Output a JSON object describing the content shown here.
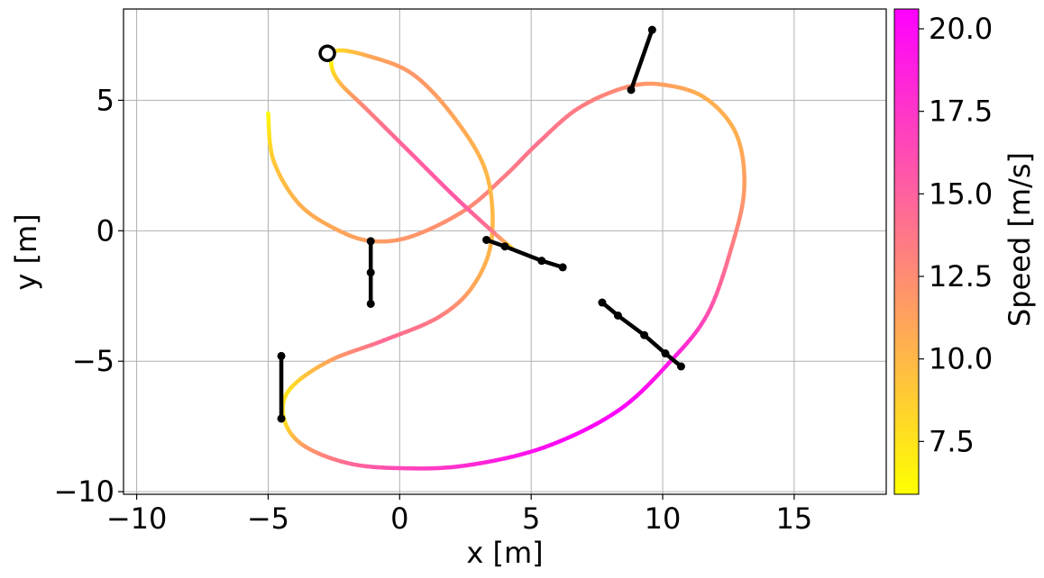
{
  "chart_data": {
    "type": "scatter",
    "xlabel": "x [m]",
    "ylabel": "y [m]",
    "xlim": [
      -10.5,
      18.5
    ],
    "ylim": [
      -10.1,
      8.5
    ],
    "grid": true,
    "xticks": [
      {
        "v": -10,
        "label": "−10"
      },
      {
        "v": -5,
        "label": "−5"
      },
      {
        "v": 0,
        "label": "0"
      },
      {
        "v": 5,
        "label": "5"
      },
      {
        "v": 10,
        "label": "10"
      },
      {
        "v": 15,
        "label": "15"
      }
    ],
    "yticks": [
      {
        "v": -10,
        "label": "−10"
      },
      {
        "v": -5,
        "label": "−5"
      },
      {
        "v": 0,
        "label": "0"
      },
      {
        "v": 5,
        "label": "5"
      }
    ],
    "colorbar": {
      "label": "Speed [m/s]",
      "colormap": "spring_r",
      "range": [
        5.9,
        20.6
      ],
      "ticks": [
        {
          "v": 7.5,
          "label": "7.5"
        },
        {
          "v": 10.0,
          "label": "10.0"
        },
        {
          "v": 12.5,
          "label": "12.5"
        },
        {
          "v": 15.0,
          "label": "15.0"
        },
        {
          "v": 17.5,
          "label": "17.5"
        },
        {
          "v": 20.0,
          "label": "20.0"
        }
      ],
      "colors": {
        "low": "#ffff00",
        "high": "#ff00ff"
      }
    },
    "trajectory": [
      {
        "x": -5.0,
        "y": 4.5,
        "speed": 6.0
      },
      {
        "x": -4.8,
        "y": 2.7,
        "speed": 9.0
      },
      {
        "x": -3.8,
        "y": 1.0,
        "speed": 10.5
      },
      {
        "x": -2.3,
        "y": 0.0,
        "speed": 11.0
      },
      {
        "x": -1.0,
        "y": -0.4,
        "speed": 11.5
      },
      {
        "x": 0.5,
        "y": -0.2,
        "speed": 12.0
      },
      {
        "x": 2.5,
        "y": 0.8,
        "speed": 12.5
      },
      {
        "x": 4.0,
        "y": 2.1,
        "speed": 13.5
      },
      {
        "x": 5.3,
        "y": 3.4,
        "speed": 14.0
      },
      {
        "x": 6.8,
        "y": 4.7,
        "speed": 13.5
      },
      {
        "x": 8.6,
        "y": 5.5,
        "speed": 12.5
      },
      {
        "x": 10.0,
        "y": 5.6,
        "speed": 11.5
      },
      {
        "x": 11.6,
        "y": 5.1,
        "speed": 10.5
      },
      {
        "x": 12.8,
        "y": 3.7,
        "speed": 10.5
      },
      {
        "x": 13.1,
        "y": 1.6,
        "speed": 11.5
      },
      {
        "x": 12.6,
        "y": -0.7,
        "speed": 13.5
      },
      {
        "x": 11.7,
        "y": -3.2,
        "speed": 16.0
      },
      {
        "x": 10.3,
        "y": -5.0,
        "speed": 19.0
      },
      {
        "x": 8.3,
        "y": -6.9,
        "speed": 20.5
      },
      {
        "x": 5.5,
        "y": -8.3,
        "speed": 20.0
      },
      {
        "x": 2.5,
        "y": -9.0,
        "speed": 18.0
      },
      {
        "x": 0.0,
        "y": -9.1,
        "speed": 16.5
      },
      {
        "x": -2.0,
        "y": -8.9,
        "speed": 14.5
      },
      {
        "x": -3.7,
        "y": -8.2,
        "speed": 11.5
      },
      {
        "x": -4.4,
        "y": -7.2,
        "speed": 7.5
      },
      {
        "x": -4.2,
        "y": -6.1,
        "speed": 7.5
      },
      {
        "x": -2.7,
        "y": -5.0,
        "speed": 11.0
      },
      {
        "x": -0.6,
        "y": -4.2,
        "speed": 14.5
      },
      {
        "x": 1.5,
        "y": -3.3,
        "speed": 13.5
      },
      {
        "x": 2.8,
        "y": -2.1,
        "speed": 11.0
      },
      {
        "x": 3.5,
        "y": -0.3,
        "speed": 10.0
      },
      {
        "x": 3.3,
        "y": 2.2,
        "speed": 10.0
      },
      {
        "x": 2.1,
        "y": 4.3,
        "speed": 11.0
      },
      {
        "x": 0.5,
        "y": 6.0,
        "speed": 12.0
      },
      {
        "x": -1.2,
        "y": 6.7,
        "speed": 11.0
      },
      {
        "x": -2.4,
        "y": 6.9,
        "speed": 8.0
      },
      {
        "x": -2.6,
        "y": 6.4,
        "speed": 6.5
      },
      {
        "x": -2.3,
        "y": 5.7,
        "speed": 9.5
      },
      {
        "x": -1.3,
        "y": 4.7,
        "speed": 13.0
      },
      {
        "x": 0.3,
        "y": 3.1,
        "speed": 15.0
      },
      {
        "x": 2.1,
        "y": 1.3,
        "speed": 15.5
      },
      {
        "x": 3.5,
        "y": 0.0,
        "speed": 14.0
      },
      {
        "x": 4.3,
        "y": -0.7,
        "speed": 8.0
      }
    ],
    "start_marker": {
      "x": -2.75,
      "y": 6.8
    },
    "vectors": [
      {
        "points": [
          {
            "x": 8.8,
            "y": 5.4
          },
          {
            "x": 9.6,
            "y": 7.7
          }
        ]
      },
      {
        "points": [
          {
            "x": -1.1,
            "y": -0.4
          },
          {
            "x": -1.1,
            "y": -1.6
          },
          {
            "x": -1.1,
            "y": -2.8
          }
        ]
      },
      {
        "points": [
          {
            "x": 3.3,
            "y": -0.35
          },
          {
            "x": 4.0,
            "y": -0.6
          },
          {
            "x": 5.4,
            "y": -1.15
          },
          {
            "x": 6.2,
            "y": -1.4
          }
        ]
      },
      {
        "points": [
          {
            "x": 7.7,
            "y": -2.75
          },
          {
            "x": 8.3,
            "y": -3.25
          },
          {
            "x": 9.3,
            "y": -4.0
          },
          {
            "x": 10.1,
            "y": -4.7
          },
          {
            "x": 10.7,
            "y": -5.2
          }
        ]
      },
      {
        "points": [
          {
            "x": -4.5,
            "y": -4.8
          },
          {
            "x": -4.5,
            "y": -7.2
          }
        ]
      }
    ]
  }
}
